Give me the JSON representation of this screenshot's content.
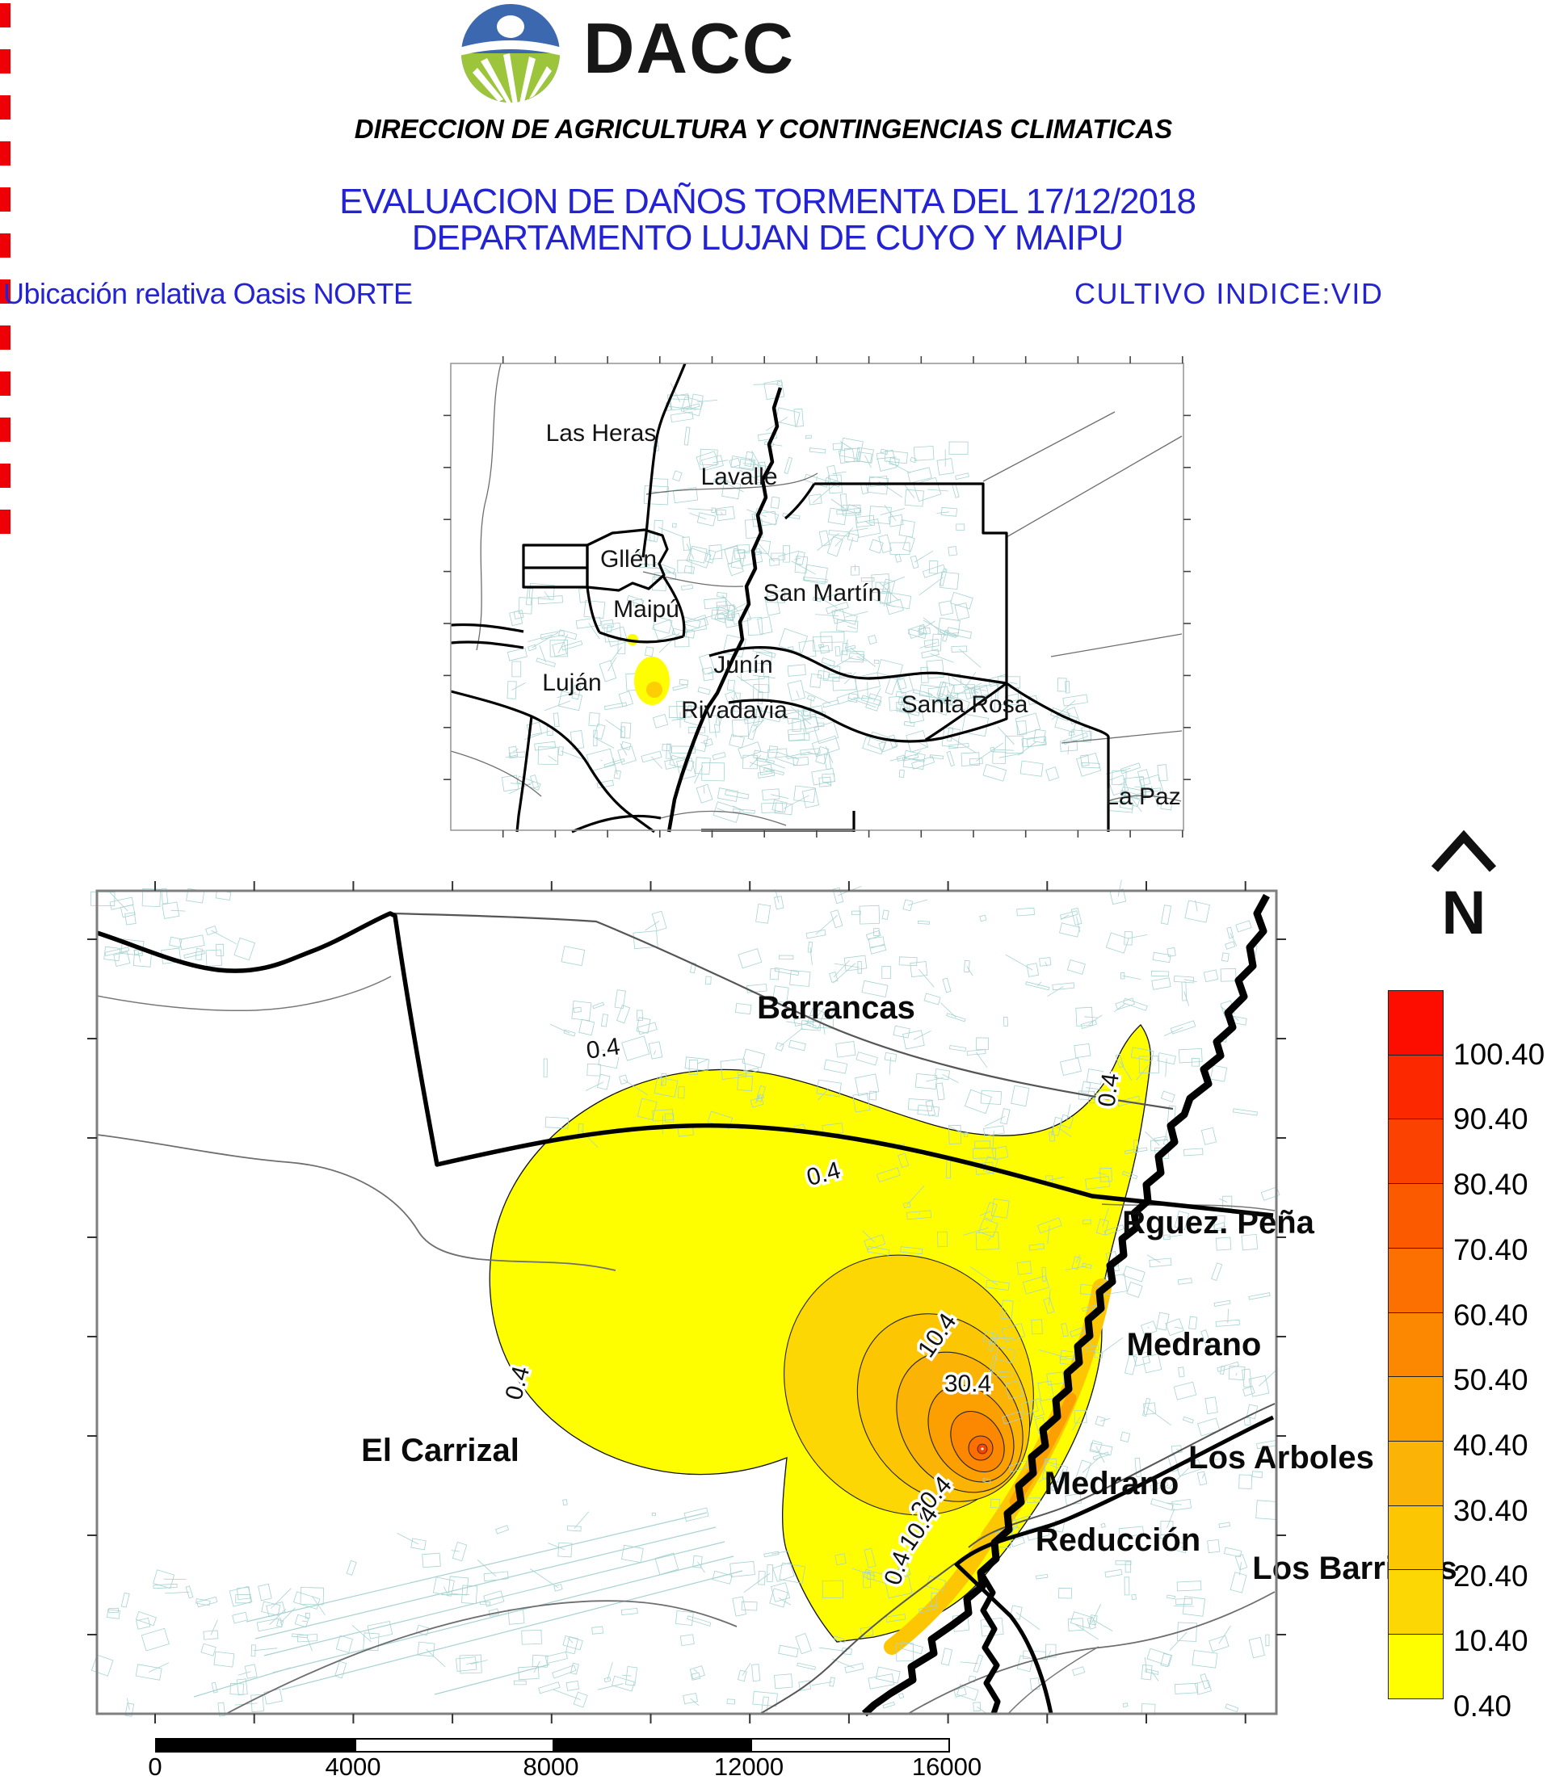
{
  "header": {
    "logo_acronym": "DACC",
    "org_line": "DIRECCION DE AGRICULTURA Y CONTINGENCIAS CLIMATICAS",
    "title_line1": "EVALUACION DE DAÑOS TORMENTA DEL 17/12/2018",
    "title_line2": "DEPARTAMENTO LUJAN DE CUYO Y MAIPU",
    "subtitle_left": "Ubicación relativa Oasis NORTE",
    "subtitle_right": "CULTIVO INDICE:VID",
    "title_color": "#2323d3"
  },
  "overview_map": {
    "district_labels": {
      "las_heras": "Las Heras",
      "lavalle": "Lavalle",
      "gllen": "Gllén",
      "maipu": "Maipú",
      "san_martin": "San Martín",
      "junin": "Junín",
      "lujan": "Luján",
      "rivadavia": "Rivadavia",
      "santa_rosa": "Santa Rosa",
      "la_paz": "La Paz"
    }
  },
  "detail_map": {
    "place_labels": {
      "barrancas": "Barrancas",
      "rguez_pena": "Rguez. Peña",
      "medrano_north": "Medrano",
      "el_carrizal": "El Carrizal",
      "los_arboles": "Los Arboles",
      "medrano_south": "Medrano",
      "reduccion": "Reducción",
      "los_barriales": "Los Barriales"
    },
    "contour_labels": {
      "c04_top": "0.4",
      "c04_mid": "0.4",
      "c04_left": "0.4",
      "c04_strip": "0.4",
      "c104_upper": "10.4",
      "c304": "30.4",
      "c204": "20.4",
      "c104_lower": "10.4",
      "c04_bottom": "0.4"
    }
  },
  "north_arrow_label": "N",
  "legend": {
    "stops": [
      {
        "color": "#fc0d00",
        "label": "100.40"
      },
      {
        "color": "#fc2900",
        "label": "90.40"
      },
      {
        "color": "#fc4200",
        "label": "80.40"
      },
      {
        "color": "#fb5a00",
        "label": "70.40"
      },
      {
        "color": "#fb7000",
        "label": "60.40"
      },
      {
        "color": "#fb8800",
        "label": "50.40"
      },
      {
        "color": "#fba000",
        "label": "40.40"
      },
      {
        "color": "#fbb405",
        "label": "30.40"
      },
      {
        "color": "#fcc603",
        "label": "20.40"
      },
      {
        "color": "#fcd703",
        "label": "10.40"
      },
      {
        "color": "#fefe00",
        "label": "0.40"
      }
    ]
  },
  "scale_bar": {
    "labels": [
      "0",
      "4000",
      "8000",
      "12000",
      "16000"
    ]
  }
}
